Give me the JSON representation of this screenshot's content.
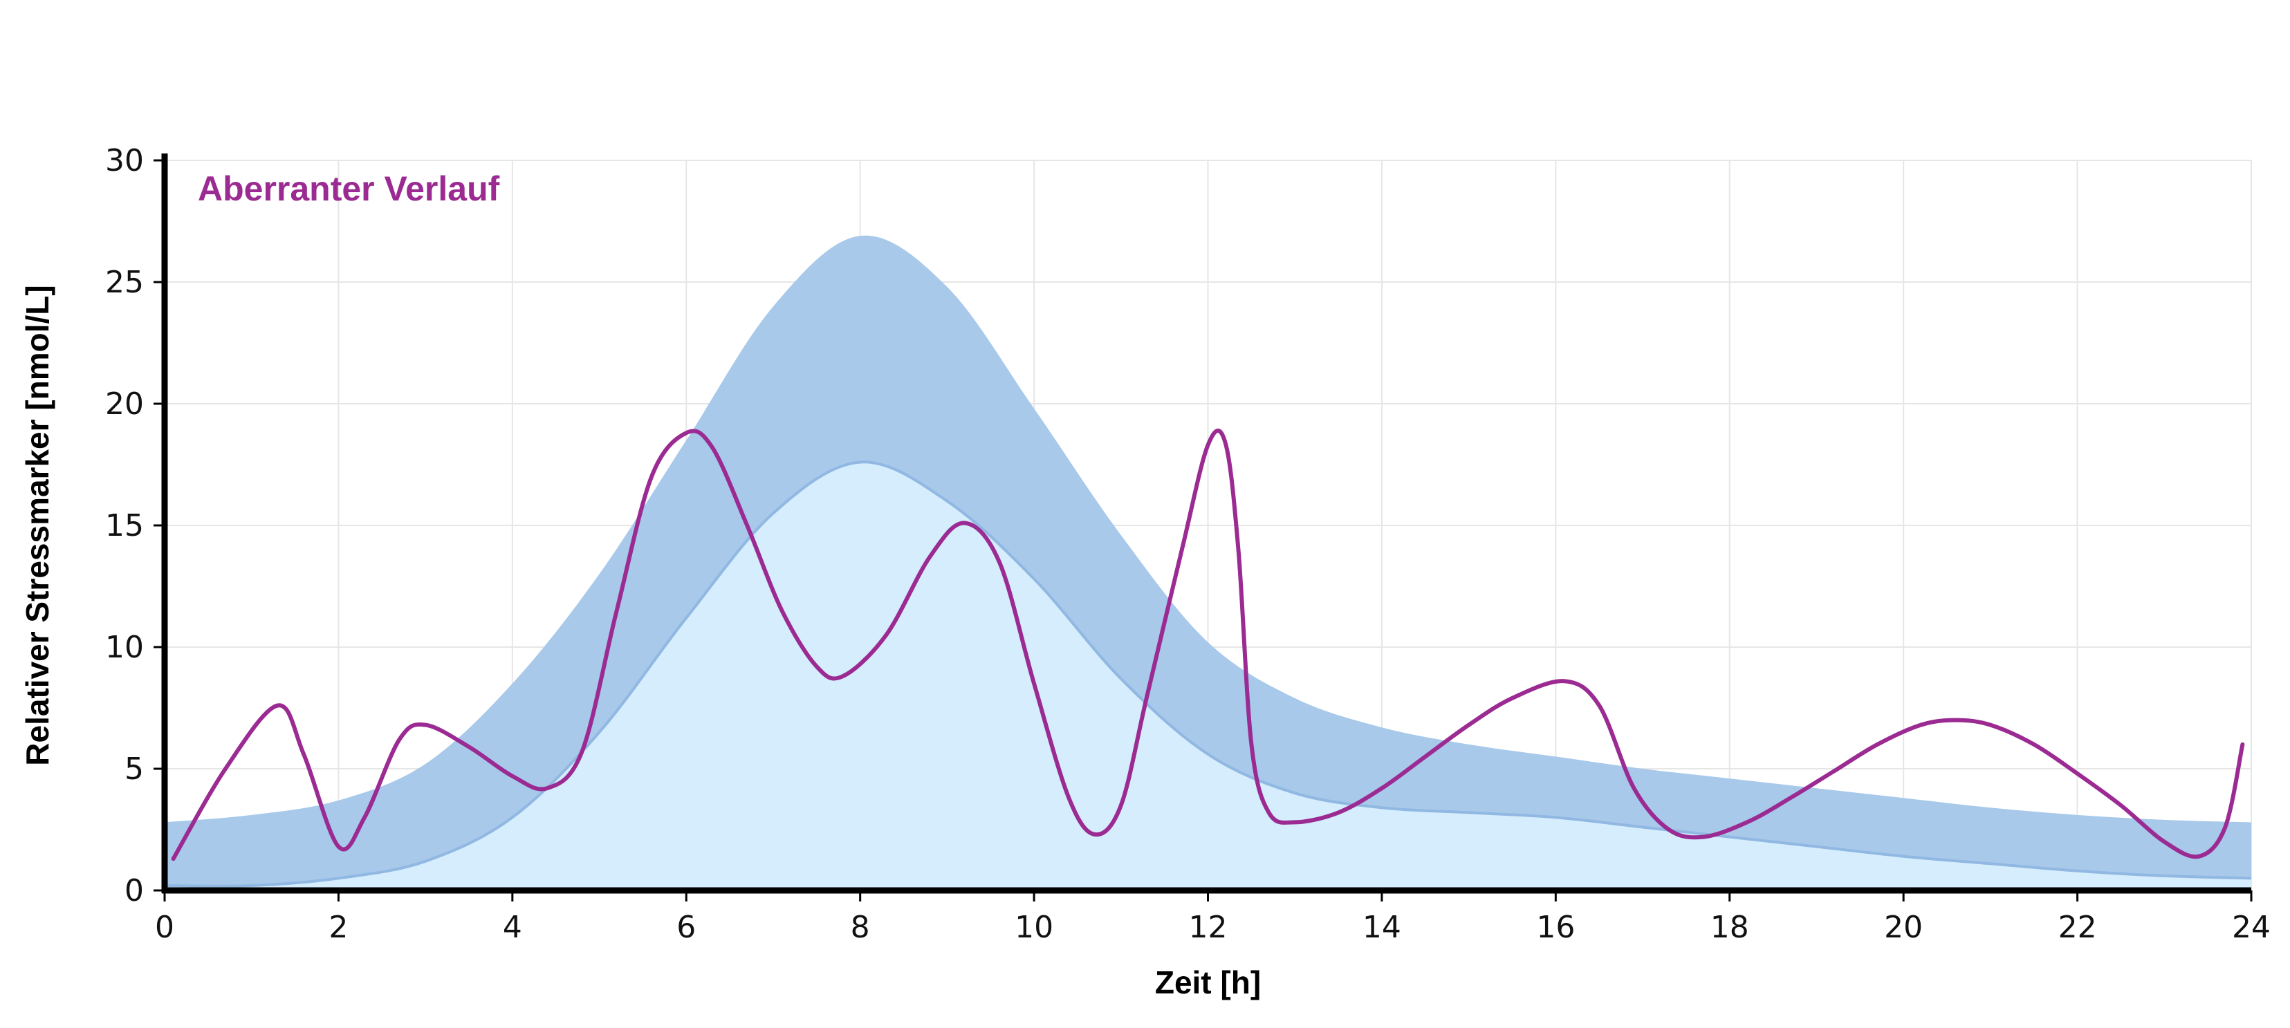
{
  "chart_data": {
    "type": "area",
    "xlabel": "Zeit [h]",
    "ylabel": "Relativer Stressmarker [nmol/L]",
    "xlim": [
      0,
      24
    ],
    "ylim": [
      0,
      30
    ],
    "xticks": [
      0,
      2,
      4,
      6,
      8,
      10,
      12,
      14,
      16,
      18,
      20,
      22,
      24
    ],
    "yticks": [
      0,
      5,
      10,
      15,
      20,
      25,
      30
    ],
    "grid": true,
    "annotation": "Aberranter Verlauf",
    "colors": {
      "band_upper": "#a8c9ea",
      "band_lower": "#d5edfc",
      "band_edge": "#90b8e2",
      "line": "#9b2b92"
    },
    "band": {
      "x": [
        0,
        1,
        2,
        3,
        4,
        5,
        6,
        7,
        8,
        9,
        10,
        11,
        12,
        13,
        14,
        15,
        16,
        17,
        18,
        19,
        20,
        21,
        22,
        23,
        24
      ],
      "lower": [
        0.2,
        0.2,
        0.5,
        1.2,
        3.0,
        6.5,
        11.2,
        15.5,
        17.6,
        16.0,
        12.8,
        8.7,
        5.6,
        4.0,
        3.4,
        3.2,
        3.0,
        2.6,
        2.2,
        1.8,
        1.4,
        1.1,
        0.8,
        0.6,
        0.5
      ],
      "upper": [
        2.8,
        3.1,
        3.7,
        5.2,
        8.5,
        13.0,
        18.5,
        24.0,
        26.9,
        24.8,
        19.8,
        14.6,
        10.2,
        7.9,
        6.7,
        6.0,
        5.5,
        5.0,
        4.6,
        4.2,
        3.8,
        3.4,
        3.1,
        2.9,
        2.8
      ]
    },
    "series": [
      {
        "x": [
          0.1,
          0.7,
          1.3,
          1.6,
          2.0,
          2.3,
          2.7,
          3.0,
          3.5,
          4.0,
          4.4,
          4.8,
          5.2,
          5.6,
          6.0,
          6.3,
          6.7,
          7.1,
          7.5,
          7.8,
          8.3,
          8.8,
          9.2,
          9.6,
          10.0,
          10.4,
          10.7,
          11.0,
          11.3,
          11.7,
          12.0,
          12.2,
          12.35,
          12.5,
          12.7,
          13.0,
          13.5,
          14.0,
          14.5,
          15.0,
          15.5,
          16.1,
          16.5,
          16.9,
          17.3,
          17.7,
          18.2,
          18.7,
          19.2,
          19.7,
          20.2,
          20.6,
          21.0,
          21.5,
          22.0,
          22.5,
          23.0,
          23.4,
          23.7,
          23.9
        ],
        "y": [
          1.3,
          5.0,
          7.6,
          5.6,
          1.8,
          3.0,
          6.2,
          6.8,
          5.9,
          4.7,
          4.2,
          5.7,
          11.5,
          17.0,
          18.8,
          18.2,
          15.0,
          11.5,
          9.2,
          8.8,
          10.5,
          13.7,
          15.1,
          13.5,
          8.5,
          3.8,
          2.3,
          3.5,
          8.0,
          14.0,
          18.3,
          18.4,
          14.0,
          6.0,
          3.2,
          2.8,
          3.2,
          4.2,
          5.5,
          6.8,
          7.9,
          8.6,
          7.6,
          4.2,
          2.5,
          2.2,
          2.8,
          3.8,
          4.9,
          6.0,
          6.8,
          7.0,
          6.8,
          6.0,
          4.8,
          3.5,
          2.0,
          1.4,
          2.6,
          6.0
        ]
      }
    ]
  }
}
